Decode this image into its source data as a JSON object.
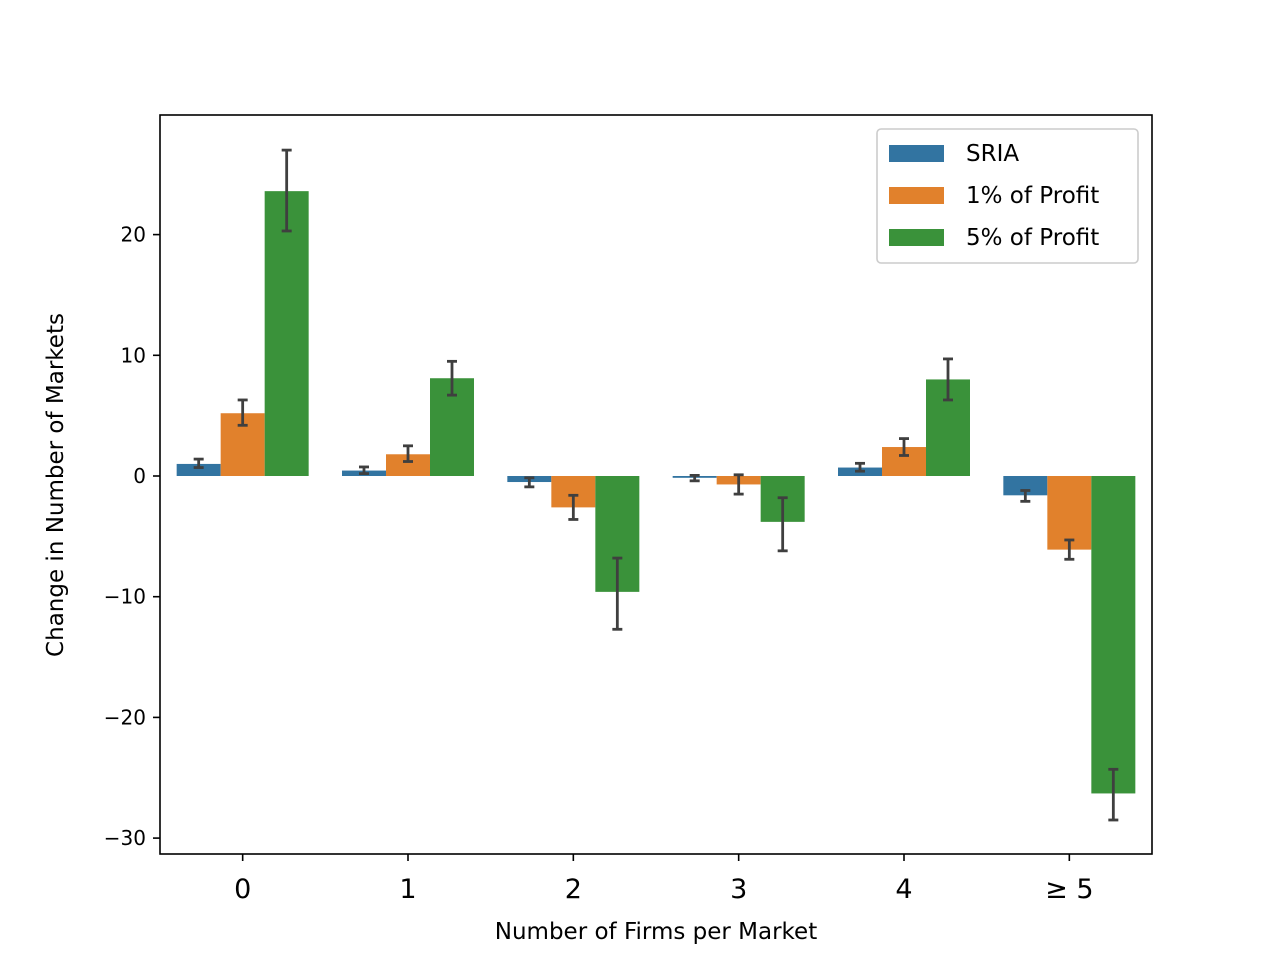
{
  "chart_data": {
    "type": "bar",
    "title": "",
    "xlabel": "Number of Firms per Market",
    "ylabel": "Change in Number of Markets",
    "categories": [
      "0",
      "1",
      "2",
      "3",
      "4",
      "≥  5"
    ],
    "ylim": [
      -31.5,
      30
    ],
    "yticks": [
      20,
      10,
      0,
      -10,
      -20,
      -30
    ],
    "ytick_labels": [
      "20",
      "10",
      "0",
      "−10",
      "−20",
      "−30"
    ],
    "grid": false,
    "legend_position": "top-right",
    "series": [
      {
        "name": "SRIA",
        "color": "#3274a1",
        "values": [
          1.0,
          0.45,
          -0.5,
          -0.15,
          0.7,
          -1.6
        ],
        "err_low": [
          0.7,
          0.2,
          -0.9,
          -0.4,
          0.4,
          -2.1
        ],
        "err_high": [
          1.4,
          0.75,
          -0.15,
          0.05,
          1.05,
          -1.2
        ]
      },
      {
        "name": "1% of Profit",
        "color": "#e1812c",
        "values": [
          5.2,
          1.8,
          -2.6,
          -0.7,
          2.4,
          -6.1
        ],
        "err_low": [
          4.2,
          1.2,
          -3.6,
          -1.5,
          1.7,
          -6.9
        ],
        "err_high": [
          6.3,
          2.5,
          -1.6,
          0.1,
          3.1,
          -5.3
        ]
      },
      {
        "name": "5% of Profit",
        "color": "#3a923a",
        "values": [
          23.6,
          8.1,
          -9.6,
          -3.8,
          8.0,
          -26.3
        ],
        "err_low": [
          20.3,
          6.7,
          -12.7,
          -6.2,
          6.3,
          -28.5
        ],
        "err_high": [
          27.0,
          9.5,
          -6.8,
          -1.8,
          9.7,
          -24.3
        ]
      }
    ]
  }
}
